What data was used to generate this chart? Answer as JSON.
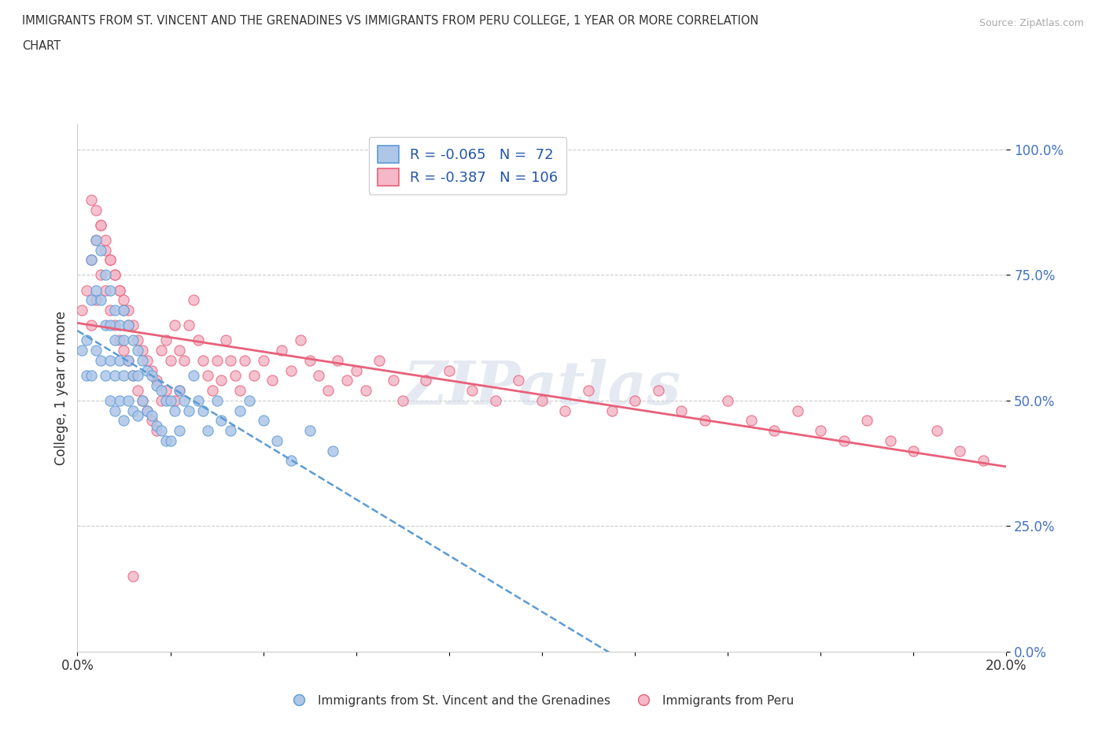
{
  "title_line1": "IMMIGRANTS FROM ST. VINCENT AND THE GRENADINES VS IMMIGRANTS FROM PERU COLLEGE, 1 YEAR OR MORE CORRELATION",
  "title_line2": "CHART",
  "source_text": "Source: ZipAtlas.com",
  "ylabel": "College, 1 year or more",
  "xmin": 0.0,
  "xmax": 0.2,
  "ymin": 0.0,
  "ymax": 1.05,
  "yticks": [
    0.0,
    0.25,
    0.5,
    0.75,
    1.0
  ],
  "ytick_labels": [
    "0.0%",
    "25.0%",
    "50.0%",
    "75.0%",
    "100.0%"
  ],
  "xticks": [
    0.0,
    0.025,
    0.05,
    0.075,
    0.1,
    0.125,
    0.15,
    0.175,
    0.2
  ],
  "xtick_labels": [
    "0.0%",
    "",
    "",
    "",
    "",
    "",
    "",
    "",
    "20.0%"
  ],
  "blue_R": -0.065,
  "blue_N": 72,
  "pink_R": -0.387,
  "pink_N": 106,
  "blue_color": "#aec6e8",
  "pink_color": "#f4b8c8",
  "blue_line_color": "#5b9bd5",
  "pink_line_color": "#e8607a",
  "watermark": "ZIPatlas",
  "legend_label_blue": "Immigrants from St. Vincent and the Grenadines",
  "legend_label_pink": "Immigrants from Peru",
  "blue_scatter_x": [
    0.001,
    0.002,
    0.002,
    0.003,
    0.003,
    0.003,
    0.004,
    0.004,
    0.004,
    0.005,
    0.005,
    0.005,
    0.006,
    0.006,
    0.006,
    0.007,
    0.007,
    0.007,
    0.007,
    0.008,
    0.008,
    0.008,
    0.008,
    0.009,
    0.009,
    0.009,
    0.01,
    0.01,
    0.01,
    0.01,
    0.011,
    0.011,
    0.011,
    0.012,
    0.012,
    0.012,
    0.013,
    0.013,
    0.013,
    0.014,
    0.014,
    0.015,
    0.015,
    0.016,
    0.016,
    0.017,
    0.017,
    0.018,
    0.018,
    0.019,
    0.019,
    0.02,
    0.02,
    0.021,
    0.022,
    0.022,
    0.023,
    0.024,
    0.025,
    0.026,
    0.027,
    0.028,
    0.03,
    0.031,
    0.033,
    0.035,
    0.037,
    0.04,
    0.043,
    0.046,
    0.05,
    0.055
  ],
  "blue_scatter_y": [
    0.6,
    0.62,
    0.55,
    0.78,
    0.7,
    0.55,
    0.82,
    0.72,
    0.6,
    0.8,
    0.7,
    0.58,
    0.75,
    0.65,
    0.55,
    0.72,
    0.65,
    0.58,
    0.5,
    0.68,
    0.62,
    0.55,
    0.48,
    0.65,
    0.58,
    0.5,
    0.68,
    0.62,
    0.55,
    0.46,
    0.65,
    0.58,
    0.5,
    0.62,
    0.55,
    0.48,
    0.6,
    0.55,
    0.47,
    0.58,
    0.5,
    0.56,
    0.48,
    0.55,
    0.47,
    0.53,
    0.45,
    0.52,
    0.44,
    0.5,
    0.42,
    0.5,
    0.42,
    0.48,
    0.52,
    0.44,
    0.5,
    0.48,
    0.55,
    0.5,
    0.48,
    0.44,
    0.5,
    0.46,
    0.44,
    0.48,
    0.5,
    0.46,
    0.42,
    0.38,
    0.44,
    0.4
  ],
  "pink_scatter_x": [
    0.001,
    0.002,
    0.003,
    0.003,
    0.004,
    0.004,
    0.005,
    0.005,
    0.006,
    0.006,
    0.007,
    0.007,
    0.008,
    0.008,
    0.009,
    0.009,
    0.01,
    0.01,
    0.011,
    0.011,
    0.012,
    0.012,
    0.013,
    0.013,
    0.014,
    0.014,
    0.015,
    0.015,
    0.016,
    0.016,
    0.017,
    0.017,
    0.018,
    0.018,
    0.019,
    0.019,
    0.02,
    0.021,
    0.021,
    0.022,
    0.022,
    0.023,
    0.024,
    0.025,
    0.026,
    0.027,
    0.028,
    0.029,
    0.03,
    0.031,
    0.032,
    0.033,
    0.034,
    0.035,
    0.036,
    0.038,
    0.04,
    0.042,
    0.044,
    0.046,
    0.048,
    0.05,
    0.052,
    0.054,
    0.056,
    0.058,
    0.06,
    0.062,
    0.065,
    0.068,
    0.07,
    0.075,
    0.08,
    0.085,
    0.09,
    0.095,
    0.1,
    0.105,
    0.11,
    0.115,
    0.12,
    0.125,
    0.13,
    0.135,
    0.14,
    0.145,
    0.15,
    0.155,
    0.16,
    0.165,
    0.17,
    0.175,
    0.18,
    0.185,
    0.19,
    0.195,
    0.003,
    0.004,
    0.005,
    0.006,
    0.007,
    0.008,
    0.009,
    0.01,
    0.011,
    0.012
  ],
  "pink_scatter_y": [
    0.68,
    0.72,
    0.78,
    0.65,
    0.82,
    0.7,
    0.85,
    0.75,
    0.8,
    0.72,
    0.78,
    0.68,
    0.75,
    0.65,
    0.72,
    0.62,
    0.7,
    0.6,
    0.68,
    0.58,
    0.65,
    0.55,
    0.62,
    0.52,
    0.6,
    0.5,
    0.58,
    0.48,
    0.56,
    0.46,
    0.54,
    0.44,
    0.6,
    0.5,
    0.62,
    0.52,
    0.58,
    0.65,
    0.5,
    0.6,
    0.52,
    0.58,
    0.65,
    0.7,
    0.62,
    0.58,
    0.55,
    0.52,
    0.58,
    0.54,
    0.62,
    0.58,
    0.55,
    0.52,
    0.58,
    0.55,
    0.58,
    0.54,
    0.6,
    0.56,
    0.62,
    0.58,
    0.55,
    0.52,
    0.58,
    0.54,
    0.56,
    0.52,
    0.58,
    0.54,
    0.5,
    0.54,
    0.56,
    0.52,
    0.5,
    0.54,
    0.5,
    0.48,
    0.52,
    0.48,
    0.5,
    0.52,
    0.48,
    0.46,
    0.5,
    0.46,
    0.44,
    0.48,
    0.44,
    0.42,
    0.46,
    0.42,
    0.4,
    0.44,
    0.4,
    0.38,
    0.9,
    0.88,
    0.85,
    0.82,
    0.78,
    0.75,
    0.72,
    0.68,
    0.65,
    0.15
  ]
}
